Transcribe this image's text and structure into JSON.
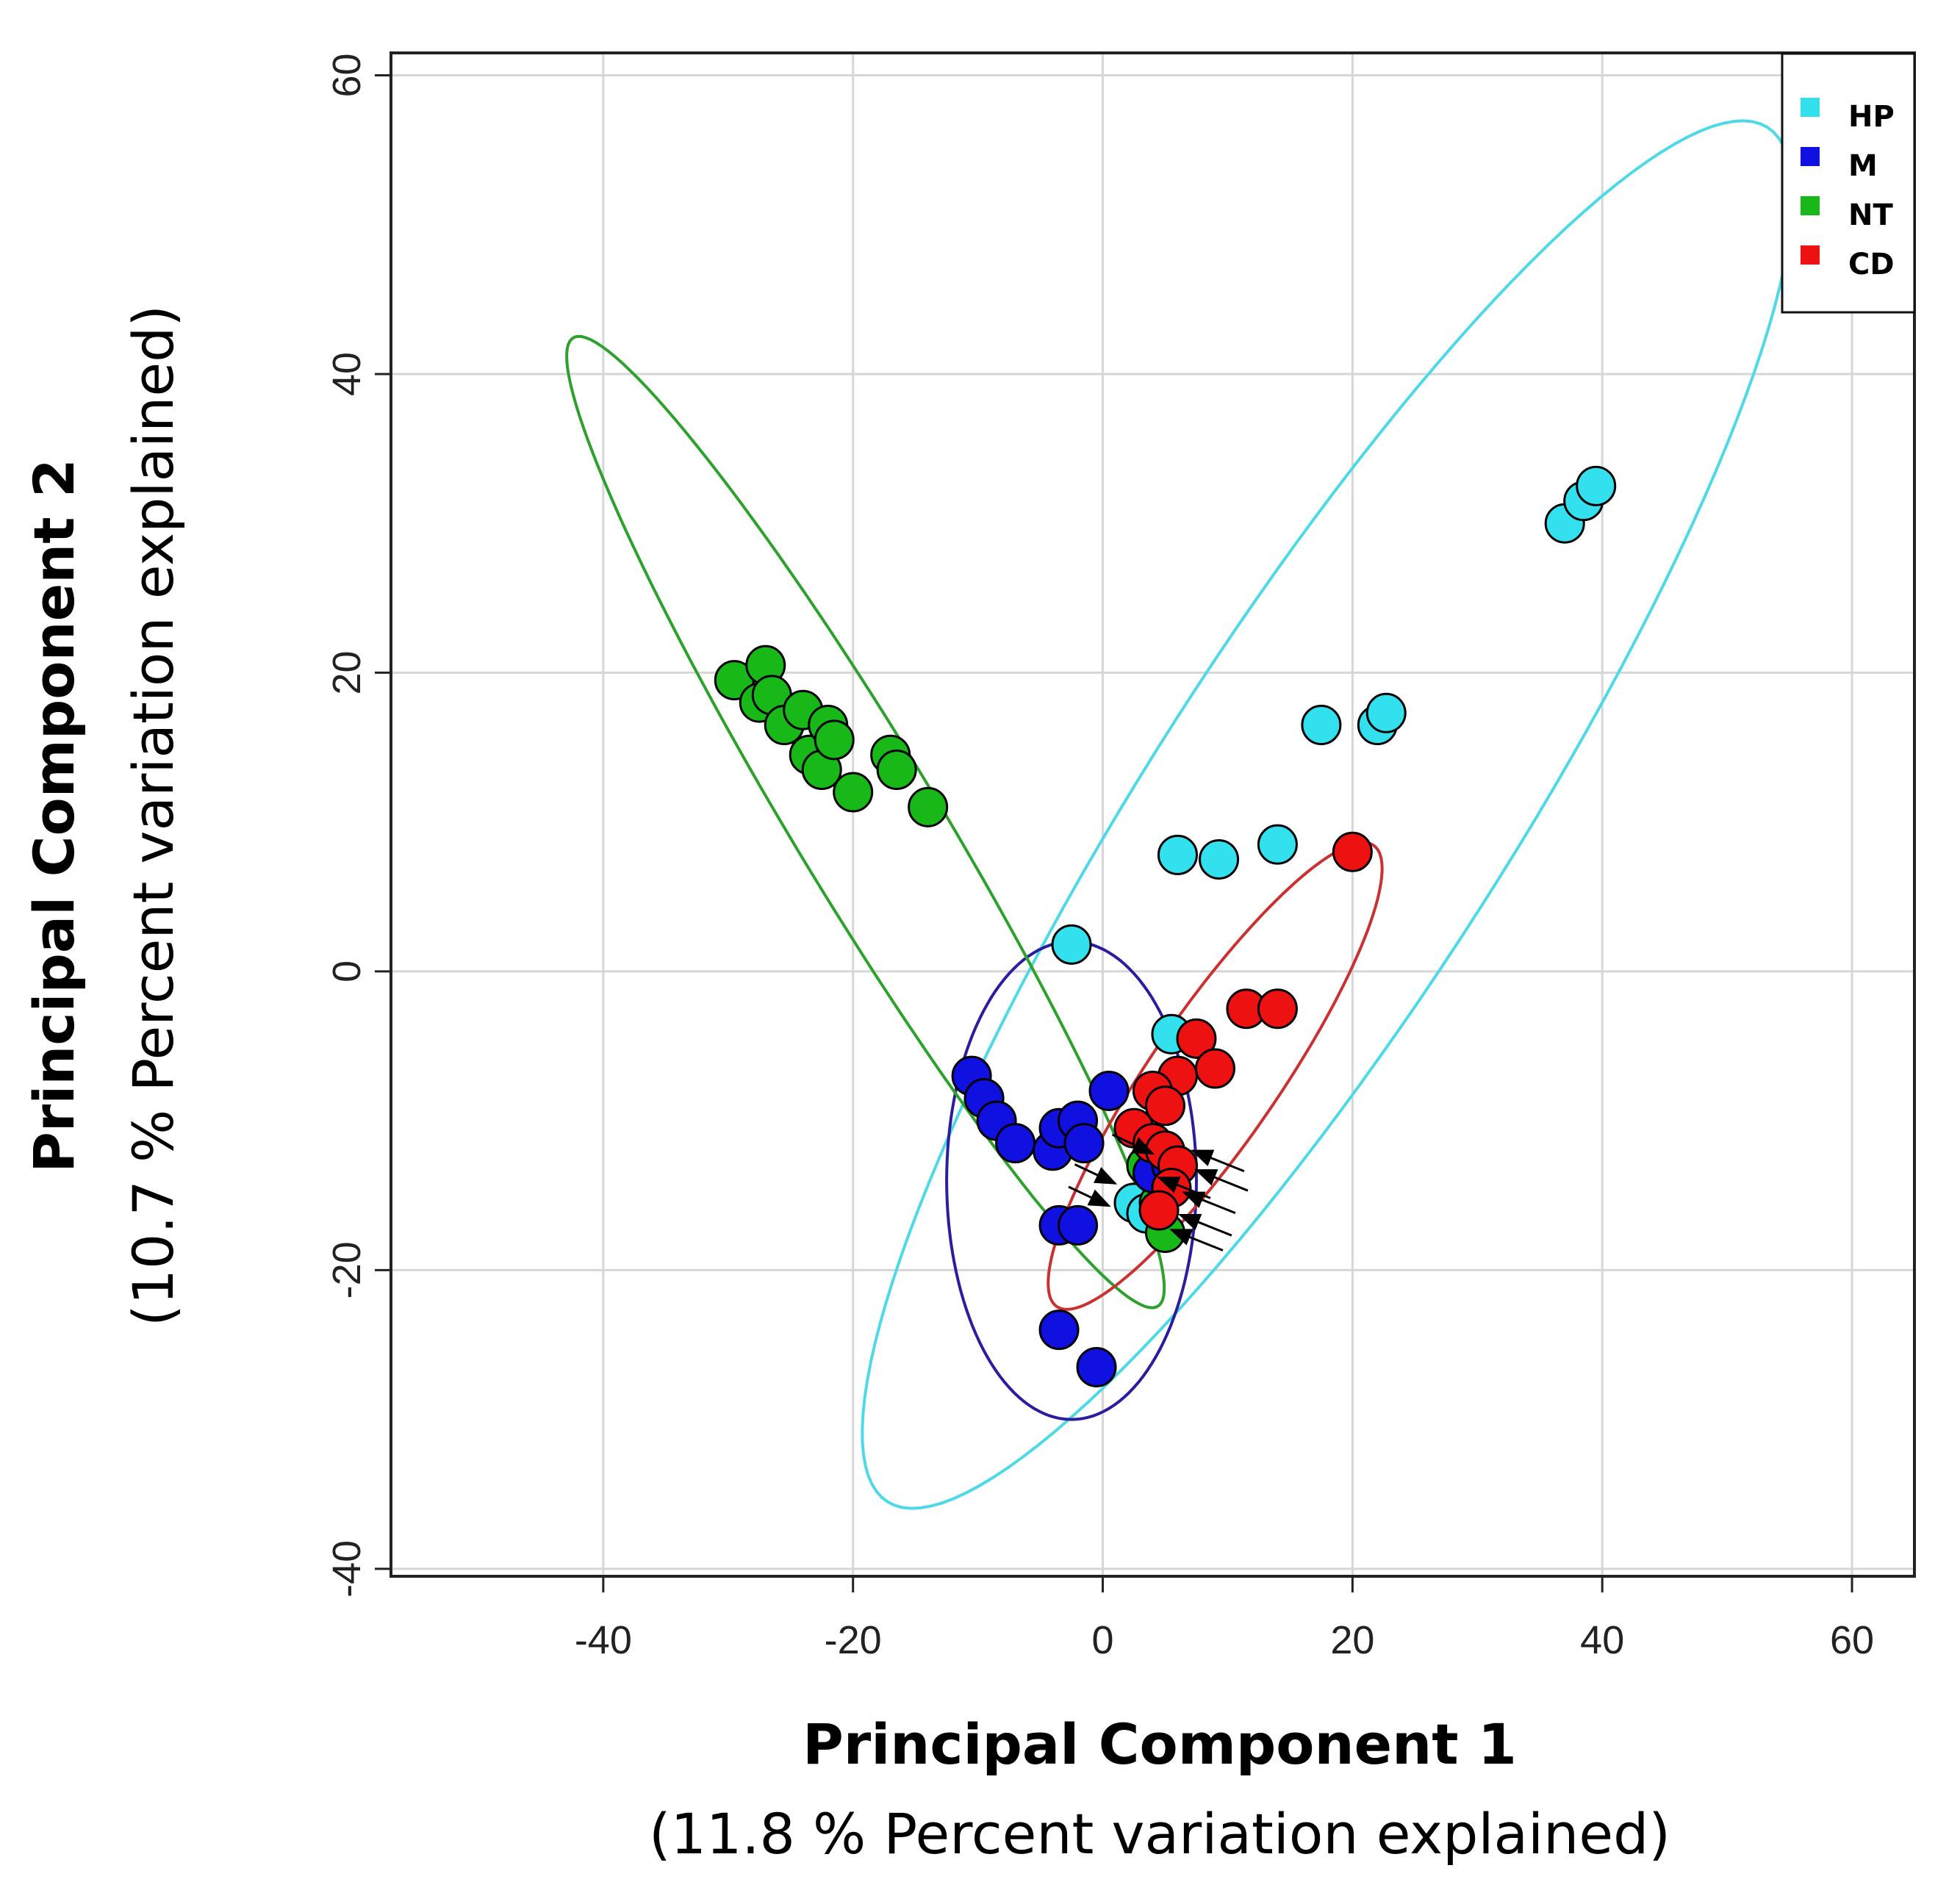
{
  "chart_data": {
    "type": "scatter",
    "title": "",
    "xlabel": "Principal Component 1",
    "xlabel_sub": "(11.8 % Percent variation explained)",
    "ylabel": "Principal Component 2",
    "ylabel_sub": "(10.7 % Percent variation explained)",
    "xlim": [
      -57,
      65
    ],
    "ylim": [
      -40.5,
      61.5
    ],
    "xticks": [
      -40,
      -20,
      0,
      20,
      40,
      60
    ],
    "yticks": [
      -40,
      -20,
      0,
      20,
      40,
      60
    ],
    "grid": true,
    "legend_position": "top-right",
    "series": [
      {
        "name": "HP",
        "color": "#33e0ee",
        "points": [
          [
            37,
            30
          ],
          [
            38.5,
            31.5
          ],
          [
            39.5,
            32.5
          ],
          [
            17.5,
            16.5
          ],
          [
            22,
            16.5
          ],
          [
            22.7,
            17.3
          ],
          [
            14,
            8.5
          ],
          [
            6,
            7.8
          ],
          [
            9.3,
            7.5
          ],
          [
            -2.5,
            1.8
          ],
          [
            5.5,
            -4.2
          ],
          [
            2.5,
            -15.5
          ],
          [
            3.5,
            -16.2
          ]
        ],
        "ellipse": {
          "cx": 18,
          "cy": 10.5,
          "rx": 58,
          "ry": 13.5,
          "angle": 52
        }
      },
      {
        "name": "M",
        "color": "#1010e0",
        "points": [
          [
            -10.5,
            -7
          ],
          [
            -9.5,
            -8.5
          ],
          [
            -8.5,
            -10
          ],
          [
            -7,
            -11.5
          ],
          [
            -4,
            -12
          ],
          [
            -3.5,
            -10.5
          ],
          [
            -2,
            -10
          ],
          [
            -1.5,
            -11.5
          ],
          [
            0.5,
            -8
          ],
          [
            -3.5,
            -17
          ],
          [
            -2,
            -17
          ],
          [
            -3.5,
            -24
          ],
          [
            -0.5,
            -26.5
          ],
          [
            4,
            -13.5
          ],
          [
            5.5,
            -13
          ]
        ],
        "ellipse": {
          "cx": -2.5,
          "cy": -14,
          "rx": 10,
          "ry": 16,
          "angle": 0
        }
      },
      {
        "name": "NT",
        "color": "#18b818",
        "points": [
          [
            -29.5,
            19.5
          ],
          [
            -27,
            20.5
          ],
          [
            -27.5,
            18
          ],
          [
            -26.5,
            18.5
          ],
          [
            -25.5,
            16.5
          ],
          [
            -24,
            17.5
          ],
          [
            -23.5,
            14.5
          ],
          [
            -22,
            16.5
          ],
          [
            -22.5,
            13.5
          ],
          [
            -21.5,
            15.5
          ],
          [
            -20,
            12
          ],
          [
            -17,
            14.5
          ],
          [
            -16.5,
            13.5
          ],
          [
            -14,
            11
          ],
          [
            5,
            -17.5
          ],
          [
            4.5,
            -15.5
          ],
          [
            3.5,
            -13
          ]
        ],
        "ellipse": {
          "cx": -19,
          "cy": 10,
          "rx": 40,
          "ry": 5.5,
          "angle": -54
        }
      },
      {
        "name": "CD",
        "color": "#ee1111",
        "points": [
          [
            20,
            8
          ],
          [
            11.5,
            -2.5
          ],
          [
            14,
            -2.5
          ],
          [
            7.5,
            -4.5
          ],
          [
            9,
            -6.5
          ],
          [
            6,
            -7
          ],
          [
            4,
            -8
          ],
          [
            5,
            -9
          ],
          [
            2.5,
            -10.5
          ],
          [
            4,
            -11.5
          ],
          [
            5,
            -12
          ],
          [
            6,
            -13
          ],
          [
            5.5,
            -14.5
          ],
          [
            4.5,
            -16
          ]
        ],
        "ellipse": {
          "cx": 9,
          "cy": -7,
          "rx": 20,
          "ry": 4.8,
          "angle": 50
        }
      }
    ],
    "arrows": [
      [
        4,
        -12.2
      ],
      [
        4.5,
        -13.8
      ],
      [
        1,
        -14.2
      ],
      [
        0.5,
        -15.7
      ],
      [
        7.2,
        -12
      ],
      [
        7.5,
        -13.3
      ],
      [
        6.5,
        -14.8
      ],
      [
        6.2,
        -16.3
      ],
      [
        5.5,
        -17.3
      ]
    ]
  }
}
